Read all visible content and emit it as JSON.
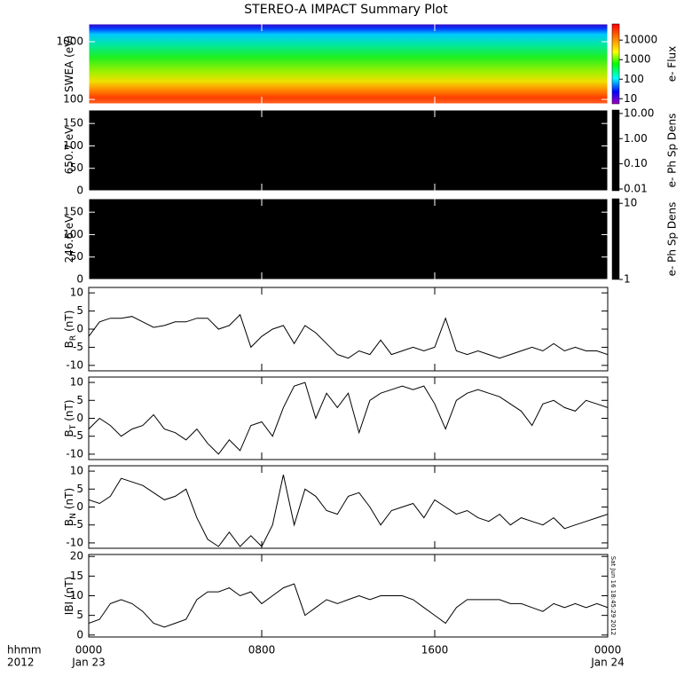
{
  "chart_data": [
    {
      "type": "spectrogram",
      "title": "STEREO-A IMPACT Summary Plot",
      "ylabel": "SWEA (eV)",
      "ylog": true,
      "ylim": [
        84,
        2030
      ],
      "yticks": [
        100,
        1000
      ],
      "colorbar": {
        "label": "e- Flux",
        "log": true,
        "lim": [
          5.5,
          67000
        ],
        "ticks": [
          10,
          100,
          1000,
          10000
        ]
      }
    },
    {
      "type": "spectrogram",
      "ylabel": "650.7 eV",
      "ylim": [
        0,
        180
      ],
      "yticks": [
        0,
        50,
        100,
        150
      ],
      "fill": "#000000",
      "colorbar": {
        "label": "e- Ph Sp Dens",
        "log": true,
        "lim": [
          0.0085,
          13.7
        ],
        "fill": "#000000",
        "ticks": [
          {
            "value": 0.01,
            "label": "0.01"
          },
          {
            "value": 0.1,
            "label": "0.10"
          },
          {
            "value": 1,
            "label": "1.00"
          },
          {
            "value": 10,
            "label": "10.00"
          }
        ]
      }
    },
    {
      "type": "spectrogram",
      "ylabel": "246.6 eV",
      "ylim": [
        0,
        180
      ],
      "yticks": [
        0,
        50,
        100,
        150
      ],
      "fill": "#000000",
      "colorbar": {
        "label": "e- Ph Sp Dens",
        "log": true,
        "lim": [
          1,
          11.5
        ],
        "fill": "#000000",
        "ticks": [
          1,
          10
        ]
      }
    },
    {
      "type": "line",
      "ylabel": "B",
      "ylabel_sub": "R",
      "ylabel_unit": "(nT)",
      "color": "#000000",
      "xlim": [
        0,
        24
      ],
      "ylim": [
        -11.5,
        11.5
      ],
      "yticks": [
        -10,
        -5,
        0,
        5,
        10
      ],
      "x": [
        0,
        0.5,
        1,
        1.5,
        2,
        2.5,
        3,
        3.5,
        4,
        4.5,
        5,
        5.5,
        6,
        6.5,
        7,
        7.5,
        8,
        8.5,
        9,
        9.5,
        10,
        10.5,
        11,
        11.5,
        12,
        12.5,
        13,
        13.5,
        14,
        14.5,
        15,
        15.5,
        16,
        16.5,
        17,
        17.5,
        18,
        18.5,
        19,
        19.5,
        20,
        20.5,
        21,
        21.5,
        22,
        22.5,
        23,
        23.5,
        24
      ],
      "values": [
        -2,
        2,
        3,
        3,
        3.5,
        2,
        0.5,
        1,
        2,
        2,
        3,
        3,
        0,
        1,
        4,
        -5,
        -2,
        0,
        1,
        -4,
        1,
        -1,
        -4,
        -7,
        -8,
        -6,
        -7,
        -3,
        -7,
        -6,
        -5,
        -6,
        -5,
        3,
        -6,
        -7,
        -6,
        -7,
        -8,
        -7,
        -6,
        -5,
        -6,
        -4,
        -6,
        -5,
        -6,
        -6,
        -7
      ]
    },
    {
      "type": "line",
      "ylabel": "B",
      "ylabel_sub": "T",
      "ylabel_unit": "(nT)",
      "color": "#000000",
      "xlim": [
        0,
        24
      ],
      "ylim": [
        -11.5,
        11.5
      ],
      "yticks": [
        -10,
        -5,
        0,
        5,
        10
      ],
      "x": [
        0,
        0.5,
        1,
        1.5,
        2,
        2.5,
        3,
        3.5,
        4,
        4.5,
        5,
        5.5,
        6,
        6.5,
        7,
        7.5,
        8,
        8.5,
        9,
        9.5,
        10,
        10.5,
        11,
        11.5,
        12,
        12.5,
        13,
        13.5,
        14,
        14.5,
        15,
        15.5,
        16,
        16.5,
        17,
        17.5,
        18,
        18.5,
        19,
        19.5,
        20,
        20.5,
        21,
        21.5,
        22,
        22.5,
        23,
        23.5,
        24
      ],
      "values": [
        -3,
        0,
        -2,
        -5,
        -3,
        -2,
        1,
        -3,
        -4,
        -6,
        -3,
        -7,
        -10,
        -6,
        -9,
        -2,
        -1,
        -5,
        3,
        9,
        10,
        0,
        7,
        3,
        7,
        -4,
        5,
        7,
        8,
        9,
        8,
        9,
        4,
        -3,
        5,
        7,
        8,
        7,
        6,
        4,
        2,
        -2,
        4,
        5,
        3,
        2,
        5,
        4,
        3
      ]
    },
    {
      "type": "line",
      "ylabel": "B",
      "ylabel_sub": "N",
      "ylabel_unit": "(nT)",
      "color": "#000000",
      "xlim": [
        0,
        24
      ],
      "ylim": [
        -11.5,
        11.5
      ],
      "yticks": [
        -10,
        -5,
        0,
        5,
        10
      ],
      "x": [
        0,
        0.5,
        1,
        1.5,
        2,
        2.5,
        3,
        3.5,
        4,
        4.5,
        5,
        5.5,
        6,
        6.5,
        7,
        7.5,
        8,
        8.5,
        9,
        9.5,
        10,
        10.5,
        11,
        11.5,
        12,
        12.5,
        13,
        13.5,
        14,
        14.5,
        15,
        15.5,
        16,
        16.5,
        17,
        17.5,
        18,
        18.5,
        19,
        19.5,
        20,
        20.5,
        21,
        21.5,
        22,
        22.5,
        23,
        23.5,
        24
      ],
      "values": [
        2,
        1,
        3,
        8,
        7,
        6,
        4,
        2,
        3,
        5,
        -3,
        -9,
        -11,
        -7,
        -11,
        -8,
        -11,
        -5,
        9,
        -5,
        5,
        3,
        -1,
        -2,
        3,
        4,
        0,
        -5,
        -1,
        0,
        1,
        -3,
        2,
        0,
        -2,
        -1,
        -3,
        -4,
        -2,
        -5,
        -3,
        -4,
        -5,
        -3,
        -6,
        -5,
        -4,
        -3,
        -2
      ]
    },
    {
      "type": "line",
      "ylabel": "IBI (nT)",
      "color": "#000000",
      "xlim": [
        0,
        24
      ],
      "ylim": [
        -0.5,
        20.5
      ],
      "yticks": [
        0,
        5,
        10,
        15,
        20
      ],
      "x": [
        0,
        0.5,
        1,
        1.5,
        2,
        2.5,
        3,
        3.5,
        4,
        4.5,
        5,
        5.5,
        6,
        6.5,
        7,
        7.5,
        8,
        8.5,
        9,
        9.5,
        10,
        10.5,
        11,
        11.5,
        12,
        12.5,
        13,
        13.5,
        14,
        14.5,
        15,
        15.5,
        16,
        16.5,
        17,
        17.5,
        18,
        18.5,
        19,
        19.5,
        20,
        20.5,
        21,
        21.5,
        22,
        22.5,
        23,
        23.5,
        24
      ],
      "values": [
        3,
        4,
        8,
        9,
        8,
        6,
        3,
        2,
        3,
        4,
        9,
        11,
        11,
        12,
        10,
        11,
        8,
        10,
        12,
        13,
        5,
        7,
        9,
        8,
        9,
        10,
        9,
        10,
        10,
        10,
        9,
        7,
        5,
        3,
        7,
        9,
        9,
        9,
        9,
        8,
        8,
        7,
        6,
        8,
        7,
        8,
        7,
        8,
        7
      ],
      "xticks": [
        {
          "value": 0,
          "label": "0000"
        },
        {
          "value": 8,
          "label": "0800"
        },
        {
          "value": 16,
          "label": "1600"
        },
        {
          "value": 24,
          "label": "0000"
        }
      ],
      "xtick_dates": [
        {
          "value": 0,
          "label": "Jan 23"
        },
        {
          "value": 24,
          "label": "Jan 24"
        }
      ],
      "xlabel_rows": [
        "hhmm",
        "2012"
      ],
      "timestamp": "Sat Jun 16 18:45:29 2012"
    }
  ]
}
